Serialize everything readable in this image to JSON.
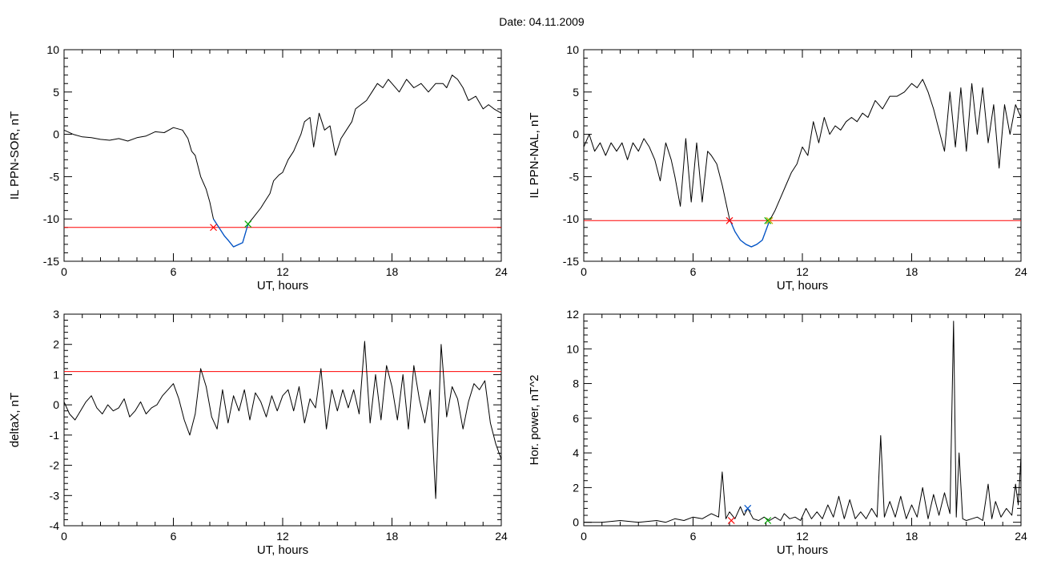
{
  "page_title": "Date:  04.11.2009",
  "chart_data": [
    {
      "type": "line",
      "name": "panel-top-left",
      "xlabel": "UT, hours",
      "ylabel": "IL PPN-SOR, nT",
      "xlim": [
        0,
        24
      ],
      "ylim": [
        -15,
        10
      ],
      "xticks": [
        0,
        6,
        12,
        18,
        24
      ],
      "xtick_labels": [
        "0",
        "6",
        "12",
        "18",
        "24"
      ],
      "yticks": [
        -15,
        -10,
        -5,
        0,
        5,
        10
      ],
      "ytick_labels": [
        "-15",
        "-10",
        "-5",
        "0",
        "5",
        "10"
      ],
      "threshold": -11.0,
      "threshold_color": "#ff0000",
      "highlight_range": [
        8.2,
        10.1
      ],
      "highlight_color": "#0055cc",
      "markers": [
        {
          "x": 8.2,
          "y": -11.0,
          "color": "#ff0000"
        },
        {
          "x": 10.1,
          "y": -10.6,
          "color": "#00aa00"
        }
      ],
      "x": [
        0,
        0.5,
        1,
        1.5,
        2,
        2.5,
        3,
        3.5,
        4,
        4.5,
        5,
        5.5,
        6,
        6.5,
        6.8,
        7,
        7.2,
        7.5,
        7.8,
        8,
        8.2,
        8.5,
        8.8,
        9,
        9.3,
        9.6,
        9.8,
        10.1,
        10.4,
        10.8,
        11,
        11.3,
        11.5,
        11.8,
        12,
        12.3,
        12.6,
        12.8,
        13,
        13.2,
        13.5,
        13.7,
        14,
        14.3,
        14.6,
        14.9,
        15.2,
        15.5,
        15.8,
        16,
        16.3,
        16.6,
        16.9,
        17.2,
        17.5,
        17.8,
        18,
        18.4,
        18.8,
        19.2,
        19.6,
        20,
        20.4,
        20.8,
        21,
        21.3,
        21.6,
        21.9,
        22.2,
        22.6,
        23,
        23.3,
        23.6,
        24
      ],
      "y": [
        0.5,
        0.0,
        -0.3,
        -0.4,
        -0.6,
        -0.7,
        -0.5,
        -0.8,
        -0.4,
        -0.2,
        0.3,
        0.2,
        0.8,
        0.5,
        -0.5,
        -2.0,
        -2.5,
        -5.0,
        -6.5,
        -8.0,
        -10.0,
        -11.0,
        -12.0,
        -12.5,
        -13.3,
        -13.0,
        -12.8,
        -10.6,
        -9.8,
        -8.7,
        -8.0,
        -7.0,
        -5.5,
        -4.8,
        -4.5,
        -3.0,
        -2.0,
        -1.0,
        0.0,
        1.5,
        2.0,
        -1.5,
        2.5,
        0.5,
        1.0,
        -2.5,
        -0.5,
        0.5,
        1.5,
        3.0,
        3.5,
        4.0,
        5.0,
        6.0,
        5.5,
        6.5,
        6.0,
        5.0,
        6.5,
        5.5,
        6.0,
        5.0,
        6.0,
        6.0,
        5.5,
        7.0,
        6.5,
        5.5,
        4.0,
        4.5,
        3.0,
        3.5,
        3.0,
        2.5
      ]
    },
    {
      "type": "line",
      "name": "panel-top-right",
      "xlabel": "UT, hours",
      "ylabel": "IL PPN-NAL, nT",
      "xlim": [
        0,
        24
      ],
      "ylim": [
        -15,
        10
      ],
      "xticks": [
        0,
        6,
        12,
        18,
        24
      ],
      "xtick_labels": [
        "0",
        "6",
        "12",
        "18",
        "24"
      ],
      "yticks": [
        -15,
        -10,
        -5,
        0,
        5,
        10
      ],
      "ytick_labels": [
        "-15",
        "-10",
        "-5",
        "0",
        "5",
        "10"
      ],
      "threshold": -10.2,
      "threshold_color": "#ff0000",
      "highlight_range": [
        8.0,
        10.2
      ],
      "highlight_color": "#0055cc",
      "markers": [
        {
          "x": 8.0,
          "y": -10.2,
          "color": "#ff0000"
        },
        {
          "x": 10.1,
          "y": -10.2,
          "color": "#00aa00"
        },
        {
          "x": 10.2,
          "y": -10.2,
          "color": "#ccaa00"
        }
      ],
      "x": [
        0,
        0.3,
        0.6,
        0.9,
        1.2,
        1.5,
        1.8,
        2.1,
        2.4,
        2.7,
        3,
        3.3,
        3.6,
        3.9,
        4.2,
        4.5,
        4.8,
        5,
        5.3,
        5.6,
        5.9,
        6.2,
        6.5,
        6.8,
        7,
        7.3,
        7.6,
        8,
        8.3,
        8.6,
        8.9,
        9.2,
        9.5,
        9.8,
        10.2,
        10.5,
        10.8,
        11.1,
        11.4,
        11.7,
        12,
        12.3,
        12.6,
        12.9,
        13.2,
        13.5,
        13.8,
        14.1,
        14.4,
        14.7,
        15,
        15.3,
        15.6,
        16,
        16.4,
        16.8,
        17.2,
        17.6,
        18,
        18.3,
        18.6,
        18.9,
        19.2,
        19.5,
        19.8,
        20.1,
        20.4,
        20.7,
        21,
        21.3,
        21.6,
        21.9,
        22.2,
        22.5,
        22.8,
        23.1,
        23.4,
        23.7,
        24
      ],
      "y": [
        -1.5,
        0.0,
        -2.0,
        -1.0,
        -2.5,
        -1.0,
        -2.0,
        -1.0,
        -3.0,
        -1.0,
        -2.0,
        -0.5,
        -1.5,
        -3.0,
        -5.5,
        -1.0,
        -3.0,
        -5.0,
        -8.5,
        -0.5,
        -8.0,
        -1.0,
        -8.0,
        -2.0,
        -2.5,
        -3.5,
        -6.0,
        -10.0,
        -11.5,
        -12.5,
        -13.0,
        -13.3,
        -13.0,
        -12.5,
        -10.2,
        -9.0,
        -7.5,
        -6.0,
        -4.5,
        -3.5,
        -1.5,
        -2.5,
        1.5,
        -1.0,
        2.0,
        0.0,
        1.0,
        0.5,
        1.5,
        2.0,
        1.5,
        2.5,
        2.0,
        4.0,
        3.0,
        4.5,
        4.5,
        5.0,
        6.0,
        5.5,
        6.5,
        5.0,
        3.0,
        0.5,
        -2.0,
        5.0,
        -1.5,
        5.5,
        -2.0,
        6.0,
        0.0,
        5.5,
        -1.0,
        3.5,
        -4.0,
        3.5,
        0.0,
        3.5,
        2.0
      ]
    },
    {
      "type": "line",
      "name": "panel-bottom-left",
      "xlabel": "UT, hours",
      "ylabel": "deltaX, nT",
      "xlim": [
        0,
        24
      ],
      "ylim": [
        -4,
        3
      ],
      "xticks": [
        0,
        6,
        12,
        18,
        24
      ],
      "xtick_labels": [
        "0",
        "6",
        "12",
        "18",
        "24"
      ],
      "yticks": [
        -4,
        -3,
        -2,
        -1,
        0,
        1,
        2,
        3
      ],
      "ytick_labels": [
        "-4",
        "-3",
        "-2",
        "-1",
        "0",
        "1",
        "2",
        "3"
      ],
      "threshold": 1.1,
      "threshold_color": "#ff0000",
      "markers": [],
      "x": [
        0,
        0.3,
        0.6,
        0.9,
        1.2,
        1.5,
        1.8,
        2.1,
        2.4,
        2.7,
        3,
        3.3,
        3.6,
        3.9,
        4.2,
        4.5,
        4.8,
        5.1,
        5.4,
        5.7,
        6,
        6.3,
        6.6,
        6.9,
        7.2,
        7.5,
        7.8,
        8.1,
        8.4,
        8.7,
        9,
        9.3,
        9.6,
        9.9,
        10.2,
        10.5,
        10.8,
        11.1,
        11.4,
        11.7,
        12,
        12.3,
        12.6,
        12.9,
        13.2,
        13.5,
        13.8,
        14.1,
        14.4,
        14.7,
        15,
        15.3,
        15.6,
        15.9,
        16.2,
        16.5,
        16.8,
        17.1,
        17.4,
        17.7,
        18,
        18.3,
        18.6,
        18.9,
        19.2,
        19.5,
        19.8,
        20.1,
        20.4,
        20.7,
        21,
        21.3,
        21.6,
        21.9,
        22.2,
        22.5,
        22.8,
        23.1,
        23.4,
        23.7,
        24
      ],
      "y": [
        0.1,
        -0.3,
        -0.5,
        -0.2,
        0.1,
        0.3,
        -0.1,
        -0.3,
        0.0,
        -0.2,
        -0.1,
        0.2,
        -0.4,
        -0.2,
        0.1,
        -0.3,
        -0.1,
        0.0,
        0.3,
        0.5,
        0.7,
        0.2,
        -0.5,
        -1.0,
        -0.3,
        1.2,
        0.6,
        -0.4,
        -0.8,
        0.5,
        -0.6,
        0.3,
        -0.2,
        0.5,
        -0.5,
        0.4,
        0.1,
        -0.4,
        0.3,
        -0.2,
        0.3,
        0.5,
        -0.2,
        0.6,
        -0.6,
        0.2,
        -0.1,
        1.2,
        -0.8,
        0.5,
        -0.2,
        0.5,
        -0.1,
        0.5,
        -0.3,
        2.1,
        -0.6,
        1.0,
        -0.5,
        1.3,
        0.6,
        -0.5,
        1.0,
        -0.8,
        1.3,
        0.2,
        -0.6,
        0.5,
        -3.1,
        2.0,
        -0.4,
        0.6,
        0.2,
        -0.8,
        0.1,
        0.7,
        0.5,
        0.8,
        -0.6,
        -1.3,
        -1.8
      ]
    },
    {
      "type": "line",
      "name": "panel-bottom-right",
      "xlabel": "UT, hours",
      "ylabel": "Hor. power, nT^2",
      "xlim": [
        0,
        24
      ],
      "ylim": [
        -0.2,
        12
      ],
      "xticks": [
        0,
        6,
        12,
        18,
        24
      ],
      "xtick_labels": [
        "0",
        "6",
        "12",
        "18",
        "24"
      ],
      "yticks": [
        0,
        2,
        4,
        6,
        8,
        10,
        12
      ],
      "ytick_labels": [
        "0",
        "2",
        "4",
        "6",
        "8",
        "10",
        "12"
      ],
      "markers": [
        {
          "x": 8.1,
          "y": 0.1,
          "color": "#ff0000"
        },
        {
          "x": 9.0,
          "y": 0.8,
          "color": "#0055cc"
        },
        {
          "x": 10.1,
          "y": 0.1,
          "color": "#00aa00"
        }
      ],
      "x": [
        0,
        1,
        2,
        3,
        4,
        4.5,
        5,
        5.5,
        6,
        6.5,
        7,
        7.4,
        7.6,
        7.8,
        8,
        8.3,
        8.6,
        8.8,
        9,
        9.3,
        9.6,
        9.9,
        10.2,
        10.5,
        10.8,
        11,
        11.3,
        11.6,
        11.9,
        12.2,
        12.5,
        12.8,
        13.1,
        13.4,
        13.7,
        14,
        14.3,
        14.6,
        14.9,
        15.2,
        15.5,
        15.8,
        16.1,
        16.3,
        16.5,
        16.8,
        17.1,
        17.4,
        17.7,
        18,
        18.3,
        18.6,
        18.9,
        19.2,
        19.5,
        19.8,
        20.1,
        20.3,
        20.45,
        20.6,
        20.8,
        21,
        21.3,
        21.6,
        21.9,
        22.2,
        22.4,
        22.6,
        22.9,
        23.2,
        23.5,
        23.7,
        23.85,
        24
      ],
      "y": [
        0.0,
        0.0,
        0.1,
        0.0,
        0.1,
        0.0,
        0.2,
        0.1,
        0.3,
        0.2,
        0.5,
        0.3,
        2.9,
        0.2,
        0.6,
        0.2,
        0.9,
        0.4,
        0.8,
        0.2,
        0.1,
        0.3,
        0.1,
        0.3,
        0.1,
        0.5,
        0.2,
        0.3,
        0.1,
        0.8,
        0.2,
        0.6,
        0.2,
        1.0,
        0.3,
        1.5,
        0.2,
        1.3,
        0.2,
        0.6,
        0.2,
        0.8,
        0.3,
        5.0,
        0.3,
        1.2,
        0.3,
        1.5,
        0.2,
        1.0,
        0.3,
        2.0,
        0.2,
        1.6,
        0.4,
        1.7,
        0.5,
        11.6,
        0.3,
        4.0,
        0.2,
        0.1,
        0.2,
        0.3,
        0.1,
        2.2,
        0.2,
        1.2,
        0.3,
        0.8,
        0.4,
        2.2,
        1.0,
        3.8
      ]
    }
  ]
}
